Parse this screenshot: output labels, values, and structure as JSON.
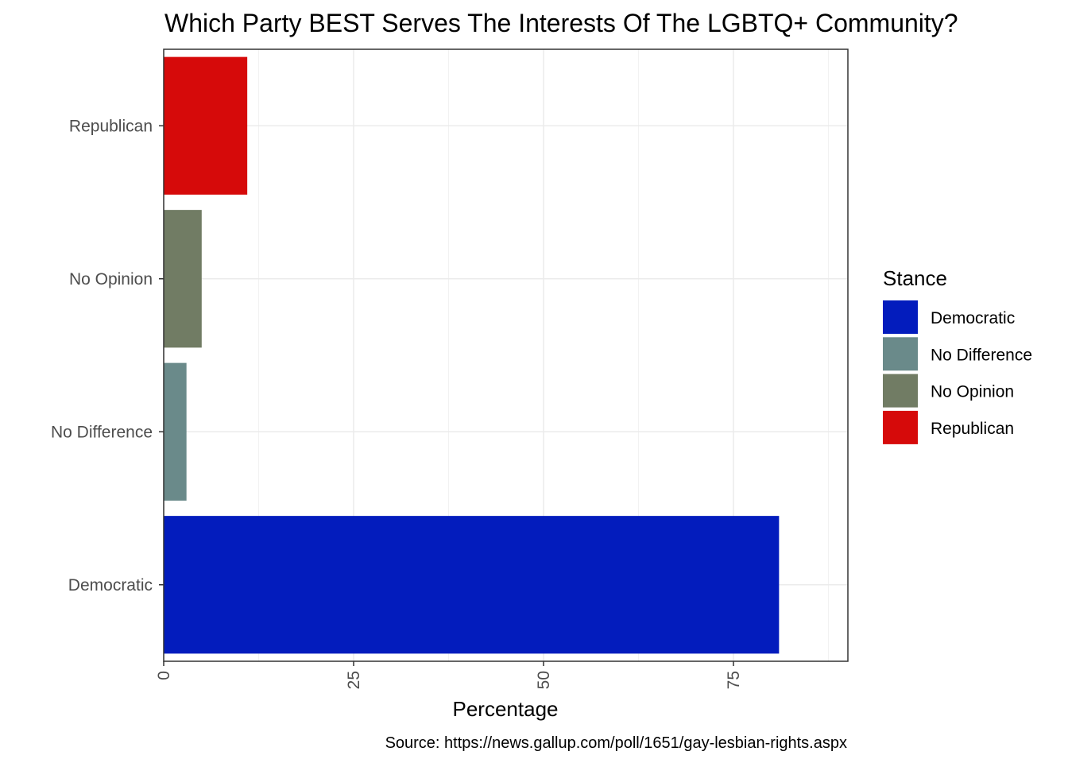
{
  "chart_data": {
    "type": "bar",
    "orientation": "horizontal",
    "title": "Which Party BEST Serves The Interests Of The LGBTQ+ Community?",
    "xlabel": "Percentage",
    "ylabel": "",
    "categories": [
      "Democratic",
      "No Difference",
      "No Opinion",
      "Republican"
    ],
    "values": [
      81,
      3,
      5,
      11
    ],
    "colors": [
      "#031CBD",
      "#6A8A8A",
      "#717C64",
      "#D60A0A"
    ],
    "xlim": [
      0,
      90
    ],
    "xticks": [
      0,
      25,
      50,
      75
    ],
    "grid": true,
    "legend": {
      "title": "Stance",
      "position": "right",
      "entries": [
        "Democratic",
        "No Difference",
        "No Opinion",
        "Republican"
      ]
    },
    "caption": "Source: https://news.gallup.com/poll/1651/gay-lesbian-rights.aspx"
  }
}
